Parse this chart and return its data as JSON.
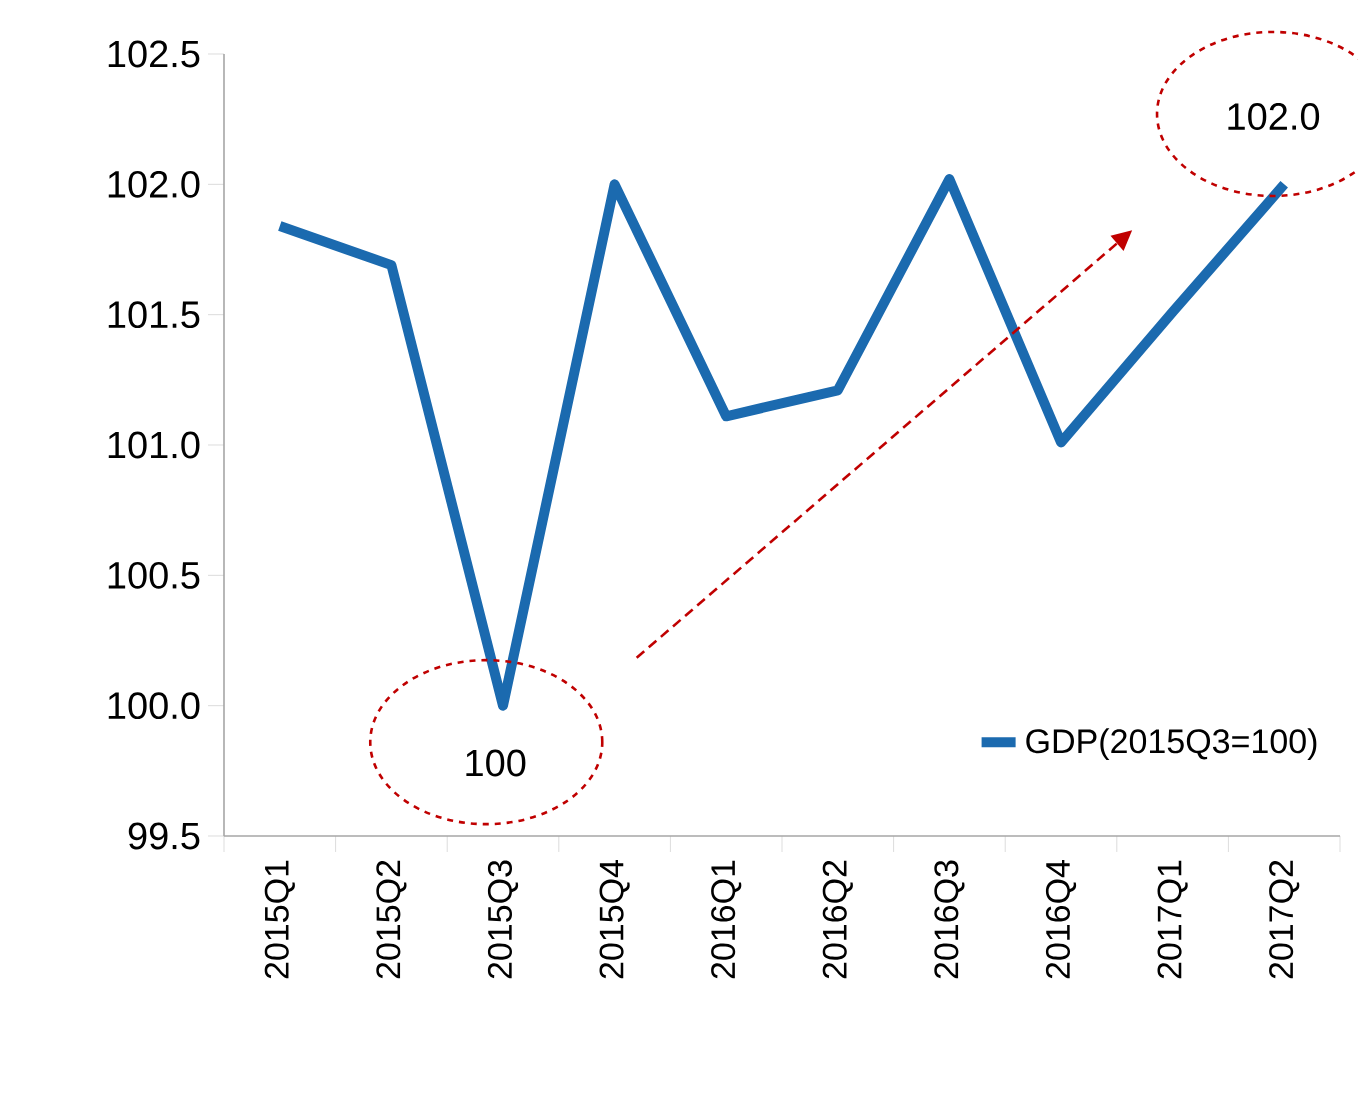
{
  "chart_data": {
    "type": "line",
    "categories": [
      "2015Q1",
      "2015Q2",
      "2015Q3",
      "2015Q4",
      "2016Q1",
      "2016Q2",
      "2016Q3",
      "2016Q4",
      "2017Q1",
      "2017Q2"
    ],
    "series": [
      {
        "name": "GDP(2015Q3=100)",
        "color": "#1b6aaf",
        "values": [
          101.84,
          101.69,
          100.0,
          102.0,
          101.11,
          101.21,
          102.02,
          101.01,
          101.51,
          102.0
        ]
      }
    ],
    "ylim": [
      99.5,
      102.5
    ],
    "yticks": [
      {
        "value": 99.5,
        "label": "99.5"
      },
      {
        "value": 100.0,
        "label": "100.0"
      },
      {
        "value": 100.5,
        "label": "100.5"
      },
      {
        "value": 101.0,
        "label": "101.0"
      },
      {
        "value": 101.5,
        "label": "101.5"
      },
      {
        "value": 102.0,
        "label": "102.0"
      },
      {
        "value": 102.5,
        "label": "102.5"
      }
    ],
    "annotations": [
      {
        "text": "100",
        "x": "2015Q3",
        "y": 100.0
      },
      {
        "text": "102.0",
        "x": "2017Q2",
        "y": 102.0
      }
    ],
    "grid": false,
    "legend": "bottom right",
    "marker": "none",
    "line_style": "solid"
  }
}
